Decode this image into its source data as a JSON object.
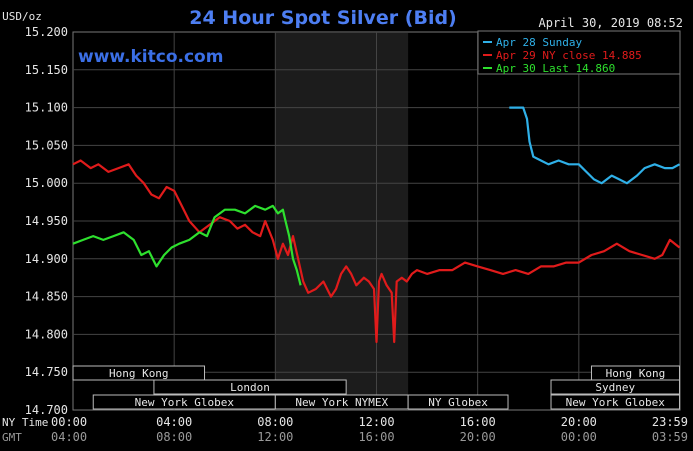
{
  "chart_data": {
    "type": "line",
    "title": "24 Hour Spot Silver (Bid)",
    "ylabel": "USD/oz",
    "timestamp": "April 30, 2019 08:52",
    "watermark": "www.kitco.com",
    "ylim": [
      14.7,
      15.2
    ],
    "yticks": [
      "15.200",
      "15.150",
      "15.100",
      "15.050",
      "15.000",
      "14.950",
      "14.900",
      "14.850",
      "14.800",
      "14.750",
      "14.700"
    ],
    "ytick_values": [
      15.2,
      15.15,
      15.1,
      15.05,
      15.0,
      14.95,
      14.9,
      14.85,
      14.8,
      14.75,
      14.7
    ],
    "xlim": [
      0,
      24
    ],
    "xaxis_rows": [
      {
        "label": "NY Time",
        "ticks": [
          "00:00",
          "04:00",
          "08:00",
          "12:00",
          "16:00",
          "20:00",
          "23:59"
        ]
      },
      {
        "label": "GMT",
        "ticks": [
          "04:00",
          "08:00",
          "12:00",
          "16:00",
          "20:00",
          "00:00",
          "03:59"
        ]
      }
    ],
    "xtick_hours": [
      0,
      4,
      8,
      12,
      16,
      20,
      23.98
    ],
    "shaded_region_hours": [
      8,
      13.25
    ],
    "sessions": [
      {
        "label": "Hong Kong",
        "start": 0,
        "end": 5.2,
        "row": 0
      },
      {
        "label": "Hong Kong",
        "start": 20.5,
        "end": 23.98,
        "row": 0
      },
      {
        "label": "London",
        "start": 3.2,
        "end": 10.8,
        "row": 1
      },
      {
        "label": "Sydney",
        "start": 18.9,
        "end": 23.98,
        "row": 1
      },
      {
        "label": "New York Globex",
        "start": 0.8,
        "end": 8.0,
        "row": 2
      },
      {
        "label": "New York NYMEX",
        "start": 8.0,
        "end": 13.25,
        "row": 2
      },
      {
        "label": "NY Globex",
        "start": 13.25,
        "end": 17.2,
        "row": 2
      },
      {
        "label": "New York Globex",
        "start": 18.9,
        "end": 23.98,
        "row": 2
      }
    ],
    "legend_position": "top-right",
    "series": [
      {
        "name": "Apr 28 Sunday",
        "color": "#2fb0e8",
        "x": [
          17.25,
          17.5,
          17.8,
          17.95,
          18.05,
          18.2,
          18.5,
          18.8,
          19.2,
          19.6,
          20.0,
          20.3,
          20.6,
          20.9,
          21.3,
          21.6,
          21.9,
          22.3,
          22.6,
          23.0,
          23.4,
          23.7,
          23.98
        ],
        "y": [
          15.1,
          15.1,
          15.1,
          15.085,
          15.055,
          15.035,
          15.03,
          15.025,
          15.03,
          15.025,
          15.025,
          15.015,
          15.005,
          15.0,
          15.01,
          15.005,
          15.0,
          15.01,
          15.02,
          15.025,
          15.02,
          15.02,
          15.025
        ]
      },
      {
        "name": "Apr 29 NY close 14.885",
        "color": "#e01b1b",
        "x": [
          0,
          0.3,
          0.7,
          1.0,
          1.4,
          1.8,
          2.2,
          2.5,
          2.8,
          3.1,
          3.4,
          3.7,
          4.0,
          4.3,
          4.6,
          5.0,
          5.4,
          5.8,
          6.2,
          6.5,
          6.8,
          7.1,
          7.4,
          7.6,
          7.9,
          8.1,
          8.3,
          8.5,
          8.7,
          8.9,
          9.1,
          9.3,
          9.6,
          9.9,
          10.2,
          10.4,
          10.6,
          10.8,
          11.0,
          11.2,
          11.5,
          11.7,
          11.9,
          12.0,
          12.1,
          12.2,
          12.4,
          12.6,
          12.7,
          12.8,
          13.0,
          13.2,
          13.4,
          13.6,
          14.0,
          14.5,
          15.0,
          15.5,
          16.0,
          16.5,
          17.0,
          17.5,
          18.0,
          18.5,
          19.0,
          19.5,
          20.0,
          20.5,
          21.0,
          21.5,
          22.0,
          22.5,
          23.0,
          23.3,
          23.6,
          23.98
        ],
        "y": [
          15.025,
          15.03,
          15.02,
          15.025,
          15.015,
          15.02,
          15.025,
          15.01,
          15.0,
          14.985,
          14.98,
          14.995,
          14.99,
          14.97,
          14.95,
          14.935,
          14.945,
          14.955,
          14.95,
          14.94,
          14.945,
          14.935,
          14.93,
          14.95,
          14.925,
          14.9,
          14.92,
          14.905,
          14.93,
          14.9,
          14.87,
          14.855,
          14.86,
          14.87,
          14.85,
          14.86,
          14.88,
          14.89,
          14.88,
          14.865,
          14.875,
          14.87,
          14.86,
          14.79,
          14.87,
          14.88,
          14.865,
          14.855,
          14.79,
          14.87,
          14.875,
          14.87,
          14.88,
          14.885,
          14.88,
          14.885,
          14.885,
          14.895,
          14.89,
          14.885,
          14.88,
          14.885,
          14.88,
          14.89,
          14.89,
          14.895,
          14.895,
          14.905,
          14.91,
          14.92,
          14.91,
          14.905,
          14.9,
          14.905,
          14.925,
          14.915
        ]
      },
      {
        "name": "Apr 30 Last 14.860",
        "color": "#2ee02e",
        "x": [
          0,
          0.4,
          0.8,
          1.2,
          1.6,
          2.0,
          2.4,
          2.7,
          3.0,
          3.3,
          3.6,
          3.9,
          4.2,
          4.6,
          5.0,
          5.3,
          5.6,
          6.0,
          6.4,
          6.8,
          7.2,
          7.6,
          7.9,
          8.1,
          8.3,
          8.4,
          8.55,
          8.7,
          8.85,
          9.0
        ],
        "y": [
          14.92,
          14.925,
          14.93,
          14.925,
          14.93,
          14.935,
          14.925,
          14.905,
          14.91,
          14.89,
          14.905,
          14.915,
          14.92,
          14.925,
          14.935,
          14.93,
          14.955,
          14.965,
          14.965,
          14.96,
          14.97,
          14.965,
          14.97,
          14.96,
          14.965,
          14.95,
          14.93,
          14.9,
          14.885,
          14.865
        ]
      }
    ]
  }
}
